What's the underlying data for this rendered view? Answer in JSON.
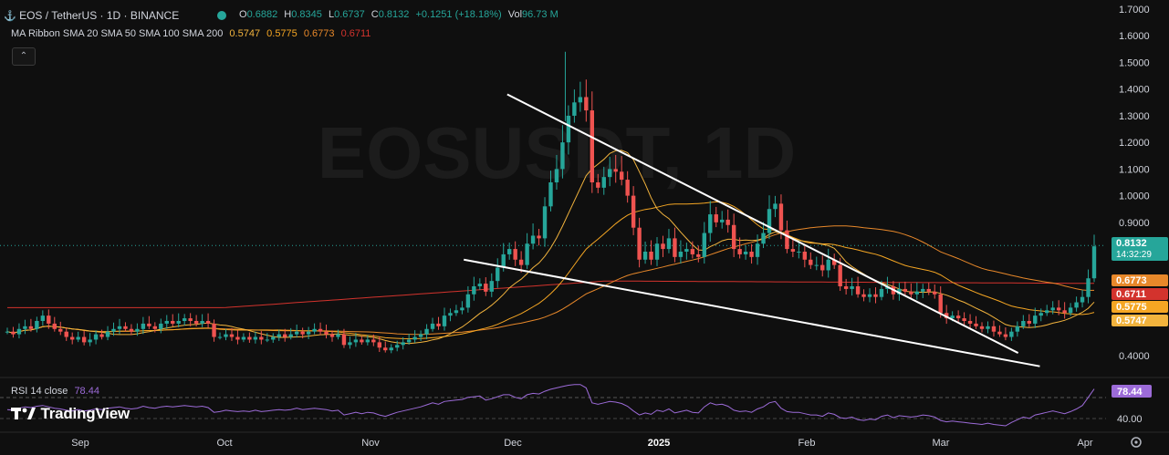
{
  "header": {
    "symbol": "EOS / TetherUS · 1D · BINANCE",
    "open_label": "O",
    "open": "0.6882",
    "high_label": "H",
    "high": "0.8345",
    "low_label": "L",
    "low": "0.6737",
    "close_label": "C",
    "close": "0.8132",
    "change": "+0.1251 (+18.18%)",
    "vol_label": "Vol",
    "vol": "96.73 M"
  },
  "indicator": {
    "name": "MA Ribbon SMA 20 SMA 50 SMA 100 SMA 200",
    "v1": "0.5747",
    "v2": "0.5775",
    "v3": "0.6773",
    "v4": "0.6711"
  },
  "watermark": "EOSUSDT, 1D",
  "branding": "TradingView",
  "rsi": {
    "label": "RSI 14 close",
    "value": "78.44",
    "axis_label": "40.00"
  },
  "colors": {
    "up": "#26a69a",
    "down": "#ef5350",
    "sma20": "#f2b33d",
    "sma50": "#f5a623",
    "sma100": "#e8882a",
    "sma200": "#d3332d",
    "rsi": "#9c6bd8"
  },
  "chart_data": {
    "type": "candlestick",
    "title": "EOS / TetherUS · 1D · BINANCE",
    "ylim": [
      0.33,
      1.72
    ],
    "y_ticks": [
      "1.7000",
      "1.6000",
      "1.5000",
      "1.4000",
      "1.3000",
      "1.2000",
      "1.1000",
      "1.0000",
      "0.9000",
      "0.4000"
    ],
    "x_ticks": [
      "Sep",
      "Oct",
      "Nov",
      "Dec",
      "2025",
      "Feb",
      "Mar",
      "Apr"
    ],
    "price_tags": [
      {
        "label": "0.8132",
        "sub": "14:32:29",
        "value": 0.8132,
        "color": "#26a69a"
      },
      {
        "label": "0.6773",
        "value": 0.6773,
        "color": "#e8882a"
      },
      {
        "label": "0.6711",
        "value": 0.6711,
        "color": "#d3332d"
      },
      {
        "label": "0.5775",
        "value": 0.5775,
        "color": "#f5a623"
      },
      {
        "label": "0.5747",
        "value": 0.5747,
        "color": "#f2b33d"
      }
    ],
    "close_series": [
      0.49,
      0.48,
      0.5,
      0.51,
      0.5,
      0.53,
      0.55,
      0.52,
      0.5,
      0.49,
      0.47,
      0.46,
      0.47,
      0.45,
      0.46,
      0.48,
      0.47,
      0.49,
      0.5,
      0.51,
      0.5,
      0.49,
      0.5,
      0.52,
      0.51,
      0.5,
      0.52,
      0.53,
      0.52,
      0.53,
      0.54,
      0.53,
      0.52,
      0.53,
      0.52,
      0.47,
      0.47,
      0.48,
      0.47,
      0.46,
      0.47,
      0.46,
      0.47,
      0.46,
      0.46,
      0.47,
      0.48,
      0.47,
      0.48,
      0.49,
      0.48,
      0.49,
      0.5,
      0.49,
      0.48,
      0.47,
      0.48,
      0.44,
      0.45,
      0.46,
      0.45,
      0.46,
      0.45,
      0.43,
      0.42,
      0.43,
      0.44,
      0.45,
      0.46,
      0.47,
      0.48,
      0.5,
      0.52,
      0.51,
      0.55,
      0.56,
      0.57,
      0.58,
      0.63,
      0.66,
      0.67,
      0.64,
      0.68,
      0.73,
      0.78,
      0.8,
      0.76,
      0.74,
      0.82,
      0.85,
      0.84,
      0.96,
      1.05,
      1.1,
      1.2,
      1.3,
      1.35,
      1.37,
      1.32,
      1.05,
      1.03,
      1.07,
      1.1,
      1.09,
      1.06,
      1.0,
      0.88,
      0.76,
      0.79,
      0.76,
      0.82,
      0.8,
      0.84,
      0.77,
      0.79,
      0.8,
      0.78,
      0.77,
      0.86,
      0.93,
      0.9,
      0.91,
      0.89,
      0.8,
      0.78,
      0.79,
      0.77,
      0.82,
      0.86,
      0.95,
      0.97,
      0.87,
      0.8,
      0.79,
      0.79,
      0.76,
      0.74,
      0.74,
      0.72,
      0.76,
      0.74,
      0.66,
      0.65,
      0.66,
      0.63,
      0.62,
      0.63,
      0.62,
      0.65,
      0.66,
      0.63,
      0.65,
      0.64,
      0.63,
      0.64,
      0.65,
      0.64,
      0.63,
      0.56,
      0.54,
      0.55,
      0.54,
      0.53,
      0.52,
      0.51,
      0.5,
      0.51,
      0.49,
      0.48,
      0.47,
      0.49,
      0.51,
      0.53,
      0.52,
      0.55,
      0.56,
      0.57,
      0.58,
      0.57,
      0.56,
      0.58,
      0.6,
      0.62,
      0.69,
      0.81
    ],
    "trendlines": [
      {
        "from": [
          0.46,
          1.38
        ],
        "to": [
          0.93,
          0.41
        ],
        "color": "#ffffff"
      },
      {
        "from": [
          0.42,
          0.76
        ],
        "to": [
          0.95,
          0.36
        ],
        "color": "#ffffff"
      }
    ],
    "rsi_series": [
      48,
      47,
      50,
      52,
      51,
      53,
      54,
      52,
      50,
      49,
      47,
      46,
      48,
      46,
      47,
      49,
      48,
      50,
      51,
      52,
      50,
      49,
      50,
      53,
      51,
      50,
      52,
      53,
      52,
      53,
      54,
      53,
      52,
      53,
      51,
      44,
      45,
      47,
      46,
      45,
      46,
      45,
      47,
      45,
      46,
      47,
      48,
      47,
      48,
      50,
      48,
      49,
      50,
      49,
      48,
      46,
      47,
      40,
      42,
      44,
      42,
      44,
      43,
      40,
      38,
      41,
      44,
      46,
      48,
      50,
      52,
      55,
      58,
      56,
      60,
      61,
      62,
      63,
      66,
      67,
      68,
      62,
      64,
      67,
      70,
      70,
      66,
      64,
      70,
      72,
      71,
      75,
      78,
      80,
      82,
      84,
      85,
      85,
      80,
      58,
      56,
      58,
      60,
      59,
      57,
      53,
      46,
      40,
      43,
      41,
      47,
      45,
      49,
      43,
      45,
      47,
      44,
      43,
      52,
      58,
      55,
      56,
      53,
      47,
      45,
      46,
      44,
      49,
      52,
      58,
      60,
      50,
      45,
      44,
      44,
      42,
      40,
      40,
      38,
      43,
      41,
      36,
      35,
      37,
      33,
      32,
      34,
      33,
      38,
      40,
      36,
      39,
      38,
      37,
      38,
      40,
      39,
      37,
      32,
      30,
      31,
      30,
      29,
      28,
      27,
      26,
      28,
      26,
      25,
      24,
      29,
      33,
      37,
      35,
      40,
      42,
      44,
      46,
      44,
      42,
      45,
      49,
      54,
      66,
      78.44
    ],
    "ma_sma20": [],
    "rsi_ylim": [
      20,
      90
    ]
  }
}
